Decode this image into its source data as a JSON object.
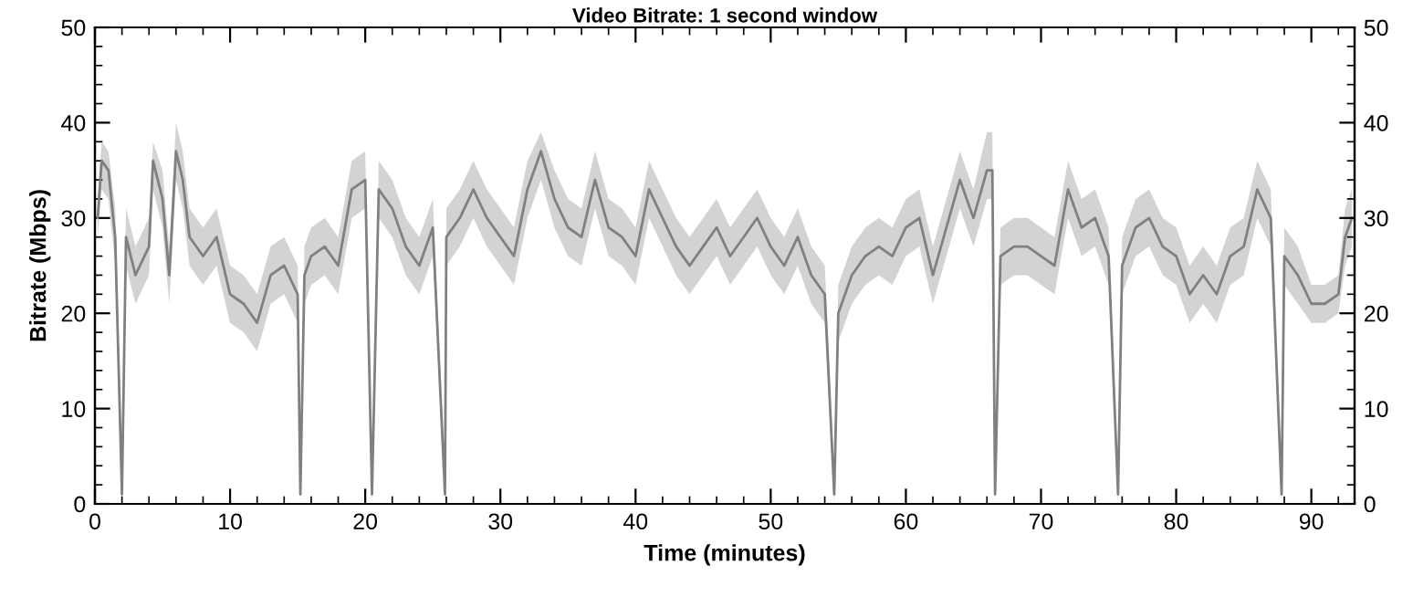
{
  "chart_data": {
    "type": "line",
    "title": "Video Bitrate: 1 second window",
    "xlabel": "Time (minutes)",
    "ylabel": "Bitrate (Mbps)",
    "xlim": [
      0,
      93.2
    ],
    "xticks": [
      0,
      10,
      20,
      30,
      40,
      50,
      60,
      70,
      80,
      90
    ],
    "ylim": [
      0,
      50
    ],
    "yticks": [
      0,
      10,
      20,
      30,
      40,
      50
    ],
    "y2lim": [
      0,
      50
    ],
    "y2ticks": [
      0,
      10,
      20,
      30,
      40,
      50
    ],
    "grid": false,
    "marker": "none",
    "line_style": "solid",
    "series": [
      {
        "color": "#808080",
        "x": [
          0.2,
          0.5,
          1,
          1.5,
          2.0,
          2.3,
          3,
          4,
          4.3,
          5,
          5.5,
          6,
          6.5,
          7,
          8,
          9,
          10,
          11,
          12,
          13,
          14,
          15,
          15.2,
          15.5,
          16,
          17,
          18,
          19,
          20,
          20.5,
          21,
          22,
          23,
          24,
          25,
          25.9,
          26,
          27,
          28,
          29,
          30,
          31,
          32,
          33,
          34,
          35,
          36,
          37,
          38,
          39,
          40,
          41,
          42,
          43,
          44,
          45,
          46,
          47,
          48,
          49,
          50,
          51,
          52,
          53,
          54,
          54.7,
          55,
          56,
          57,
          58,
          59,
          60,
          61,
          62,
          63,
          64,
          65,
          66,
          66.4,
          66.6,
          67,
          68,
          69,
          70,
          71,
          72,
          73,
          74,
          75,
          75.7,
          76,
          77,
          78,
          79,
          80,
          81,
          82,
          83,
          84,
          85,
          86,
          87,
          87.8,
          88,
          89,
          90,
          91,
          92,
          92.5,
          93
        ],
        "values": [
          30,
          36,
          35,
          28,
          1,
          28,
          24,
          27,
          36,
          32,
          24,
          37,
          34,
          28,
          26,
          28,
          22,
          21,
          19,
          24,
          25,
          22,
          1,
          24,
          26,
          27,
          25,
          33,
          34,
          1,
          33,
          31,
          27,
          25,
          29,
          1,
          28,
          30,
          33,
          30,
          28,
          26,
          33,
          37,
          32,
          29,
          28,
          34,
          29,
          28,
          26,
          33,
          30,
          27,
          25,
          27,
          29,
          26,
          28,
          30,
          27,
          25,
          28,
          24,
          22,
          1,
          20,
          24,
          26,
          27,
          26,
          29,
          30,
          24,
          29,
          34,
          30,
          35,
          35,
          1,
          26,
          27,
          27,
          26,
          25,
          33,
          29,
          30,
          26,
          1,
          25,
          29,
          30,
          27,
          26,
          22,
          24,
          22,
          26,
          27,
          33,
          30,
          1,
          26,
          24,
          21,
          21,
          22,
          28,
          30
        ],
        "lower": [
          28,
          33,
          32,
          25,
          0,
          25,
          21,
          24,
          33,
          29,
          21,
          34,
          31,
          25,
          23,
          25,
          19,
          18,
          16,
          21,
          22,
          19,
          0,
          21,
          23,
          24,
          22,
          30,
          31,
          0,
          30,
          28,
          24,
          22,
          26,
          0,
          25,
          27,
          30,
          27,
          25,
          23,
          30,
          34,
          29,
          26,
          25,
          31,
          26,
          25,
          23,
          30,
          27,
          24,
          22,
          24,
          26,
          23,
          25,
          27,
          24,
          22,
          25,
          21,
          19,
          0,
          17,
          21,
          23,
          24,
          23,
          26,
          27,
          21,
          26,
          31,
          27,
          32,
          32,
          0,
          23,
          24,
          24,
          23,
          22,
          30,
          26,
          27,
          23,
          0,
          22,
          26,
          27,
          24,
          23,
          19,
          21,
          19,
          23,
          24,
          30,
          27,
          0,
          23,
          21,
          19,
          19,
          20,
          25,
          27
        ],
        "upper": [
          32,
          38,
          37,
          31,
          3,
          31,
          27,
          30,
          38,
          35,
          27,
          40,
          37,
          31,
          29,
          31,
          25,
          24,
          22,
          27,
          28,
          25,
          3,
          27,
          29,
          30,
          28,
          36,
          37,
          3,
          36,
          34,
          30,
          28,
          32,
          3,
          31,
          33,
          36,
          33,
          31,
          29,
          36,
          39,
          35,
          32,
          31,
          37,
          32,
          31,
          29,
          36,
          33,
          30,
          28,
          30,
          32,
          29,
          31,
          33,
          30,
          28,
          31,
          27,
          25,
          3,
          23,
          27,
          29,
          30,
          29,
          32,
          33,
          27,
          32,
          37,
          33,
          39,
          39,
          3,
          29,
          30,
          30,
          29,
          28,
          36,
          32,
          33,
          29,
          3,
          28,
          32,
          33,
          30,
          29,
          25,
          27,
          25,
          29,
          30,
          36,
          33,
          3,
          29,
          27,
          23,
          23,
          24,
          31,
          33
        ]
      }
    ]
  }
}
